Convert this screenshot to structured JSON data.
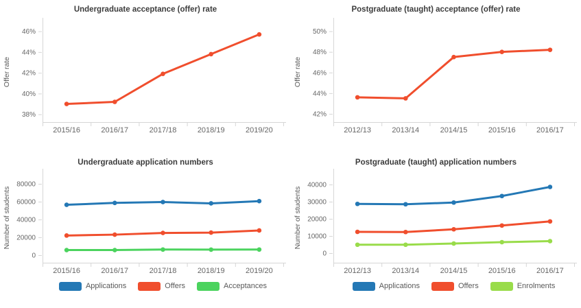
{
  "page": {
    "background": "#ffffff",
    "title_color": "#3c3c3c",
    "tick_label_color": "#666666",
    "axis_title_color": "#595959",
    "axis_line_color": "#d6d6d6"
  },
  "colors": {
    "applications_blue": "#2478b5",
    "offers_red": "#f04e2d",
    "acceptances_green": "#4bd35e",
    "enrolments_green": "#99dc4a"
  },
  "chart_data": [
    {
      "type": "line",
      "title": "Undergraduate acceptance (offer) rate",
      "xlabel": "",
      "ylabel": "Offer rate",
      "categories": [
        "2015/16",
        "2016/17",
        "2017/18",
        "2018/19",
        "2019/20"
      ],
      "series": [
        {
          "name": "Offer rate",
          "color": "#f04e2d",
          "values": [
            39.0,
            39.2,
            41.9,
            43.8,
            45.7
          ]
        }
      ],
      "yticks": [
        38,
        40,
        42,
        44,
        46
      ],
      "ytick_suffix": "%",
      "ylim": [
        37.25,
        46.9
      ],
      "grid": "off",
      "legend_position": "none"
    },
    {
      "type": "line",
      "title": "Postgraduate (taught) acceptance (offer) rate",
      "xlabel": "",
      "ylabel": "Offer rate",
      "categories": [
        "2012/13",
        "2013/14",
        "2014/15",
        "2015/16",
        "2016/17"
      ],
      "series": [
        {
          "name": "Offer rate",
          "color": "#f04e2d",
          "values": [
            43.6,
            43.5,
            47.5,
            48.0,
            48.2
          ]
        }
      ],
      "yticks": [
        42,
        44,
        46,
        48,
        50
      ],
      "ytick_suffix": "%",
      "ylim": [
        41.2,
        50.9
      ],
      "grid": "off",
      "legend_position": "none"
    },
    {
      "type": "line",
      "title": "Undergraduate application numbers",
      "xlabel": "",
      "ylabel": "Number of students",
      "categories": [
        "2015/16",
        "2016/17",
        "2017/18",
        "2018/19",
        "2019/20"
      ],
      "series": [
        {
          "name": "Applications",
          "color": "#2478b5",
          "values": [
            56500,
            58600,
            59600,
            58100,
            60600
          ]
        },
        {
          "name": "Offers",
          "color": "#f04e2d",
          "values": [
            22000,
            23000,
            24900,
            25300,
            27700
          ]
        },
        {
          "name": "Acceptances",
          "color": "#4bd35e",
          "values": [
            5700,
            5700,
            6300,
            6200,
            6300
          ]
        }
      ],
      "yticks": [
        0,
        20000,
        40000,
        60000,
        80000
      ],
      "ytick_suffix": "",
      "ylim": [
        -8500,
        92300
      ],
      "grid": "off",
      "legend_position": "bottom",
      "legend": [
        "Applications",
        "Offers",
        "Acceptances"
      ]
    },
    {
      "type": "line",
      "title": "Postgraduate (taught) application numbers",
      "xlabel": "",
      "ylabel": "Number of students",
      "categories": [
        "2012/13",
        "2013/14",
        "2014/15",
        "2015/16",
        "2016/17"
      ],
      "series": [
        {
          "name": "Applications",
          "color": "#2478b5",
          "values": [
            28700,
            28500,
            29500,
            33300,
            38600
          ]
        },
        {
          "name": "Offers",
          "color": "#f04e2d",
          "values": [
            12400,
            12300,
            13900,
            16100,
            18500
          ]
        },
        {
          "name": "Enrolments",
          "color": "#99dc4a",
          "values": [
            4900,
            4900,
            5600,
            6400,
            7000
          ]
        }
      ],
      "yticks": [
        0,
        10000,
        20000,
        30000,
        40000
      ],
      "ytick_suffix": "",
      "ylim": [
        -5600,
        46800
      ],
      "grid": "off",
      "legend_position": "bottom",
      "legend": [
        "Applications",
        "Offers",
        "Enrolments"
      ]
    }
  ]
}
